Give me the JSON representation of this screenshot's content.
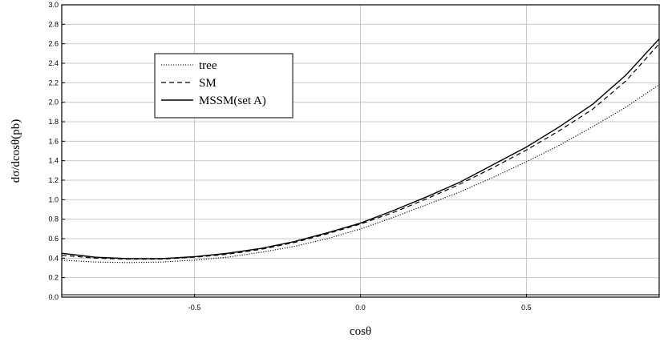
{
  "chart_data": {
    "type": "line",
    "xlabel": "cosθ",
    "ylabel": "dσ/dcosθ(pb)",
    "xlim": [
      -0.9,
      0.9
    ],
    "ylim": [
      0.0,
      3.0
    ],
    "x_ticks": [
      -0.5,
      0.0,
      0.5
    ],
    "x_tick_labels": [
      "-0.5",
      "0.0",
      "0.5"
    ],
    "y_ticks": [
      0.0,
      0.2,
      0.4,
      0.6,
      0.8,
      1.0,
      1.2,
      1.4,
      1.6,
      1.8,
      2.0,
      2.2,
      2.4,
      2.6,
      2.8,
      3.0
    ],
    "y_tick_labels": [
      "0.0",
      "0.2",
      "0.4",
      "0.6",
      "0.8",
      "1.0",
      "1.2",
      "1.4",
      "1.6",
      "1.8",
      "2.0",
      "2.2",
      "2.4",
      "2.6",
      "2.8",
      "3.0"
    ],
    "grid": true,
    "legend_position": "top-left",
    "x": [
      -0.9,
      -0.8,
      -0.7,
      -0.6,
      -0.5,
      -0.4,
      -0.3,
      -0.2,
      -0.1,
      0.0,
      0.1,
      0.2,
      0.3,
      0.4,
      0.5,
      0.6,
      0.7,
      0.8,
      0.9
    ],
    "series": [
      {
        "name": "tree",
        "dash": "dotted",
        "color": "#000000",
        "values": [
          0.38,
          0.36,
          0.355,
          0.36,
          0.38,
          0.41,
          0.46,
          0.52,
          0.6,
          0.7,
          0.82,
          0.95,
          1.08,
          1.23,
          1.39,
          1.56,
          1.75,
          1.95,
          2.18
        ]
      },
      {
        "name": "SM",
        "dash": "dashed",
        "color": "#000000",
        "values": [
          0.43,
          0.4,
          0.39,
          0.39,
          0.41,
          0.44,
          0.49,
          0.56,
          0.65,
          0.75,
          0.87,
          1.01,
          1.16,
          1.33,
          1.51,
          1.71,
          1.93,
          2.22,
          2.6
        ]
      },
      {
        "name": "MSSM(set A)",
        "dash": "solid",
        "color": "#000000",
        "values": [
          0.45,
          0.41,
          0.395,
          0.395,
          0.415,
          0.45,
          0.5,
          0.57,
          0.66,
          0.76,
          0.89,
          1.03,
          1.18,
          1.36,
          1.54,
          1.75,
          1.98,
          2.28,
          2.65
        ]
      }
    ]
  }
}
